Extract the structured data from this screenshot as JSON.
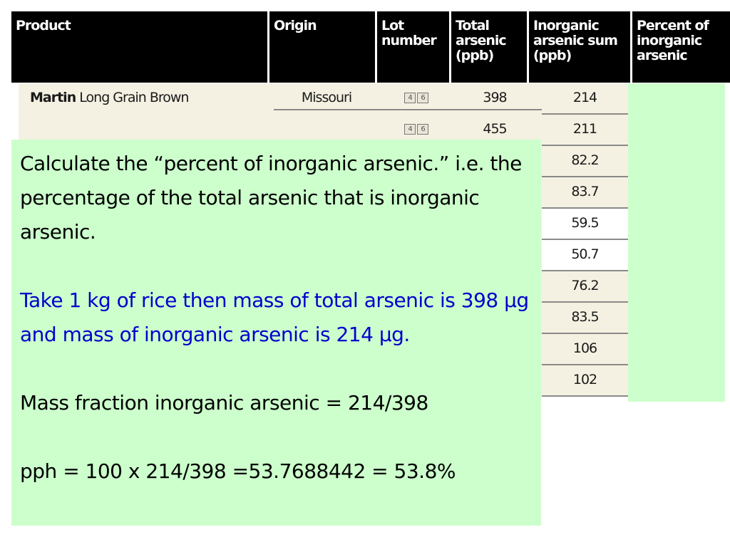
{
  "table": {
    "headers": [
      "Product",
      "Origin",
      "Lot\nnumber",
      "Total\narsenic\n(ppb)",
      "Inorganic\narsenic sum\n(ppb)",
      "Percent of\ninorganic\narsenic"
    ],
    "row1": {
      "brand": "Martin",
      "product": " Long Grain Brown",
      "origin": "Missouri",
      "lot_a": "4",
      "lot_b": "6",
      "total": "398",
      "inorganic": "214"
    },
    "row2": {
      "lot_a": "4",
      "lot_b": "6",
      "total": "455",
      "inorganic": "211"
    },
    "inorganic_values": [
      "82.2",
      "83.7",
      "59.5",
      "50.7",
      "76.2",
      "83.5",
      "106",
      "102"
    ]
  },
  "overlay": {
    "para1": "Calculate the “percent of inorganic arsenic.” i.e. the percentage of the total arsenic that is inorganic arsenic.",
    "para2": "Take 1 kg of rice then mass of total arsenic is 398 µg and mass of inorganic arsenic is 214 µg.",
    "para3": "Mass fraction inorganic arsenic = 214/398",
    "para4": "pph = 100 x 214/398 =53.7688442 = 53.8%"
  },
  "colors": {
    "header_bg": "#000000",
    "body_bg": "#f4f1e2",
    "highlight_green": "#ccffcc",
    "blue_text": "#0000cc"
  }
}
